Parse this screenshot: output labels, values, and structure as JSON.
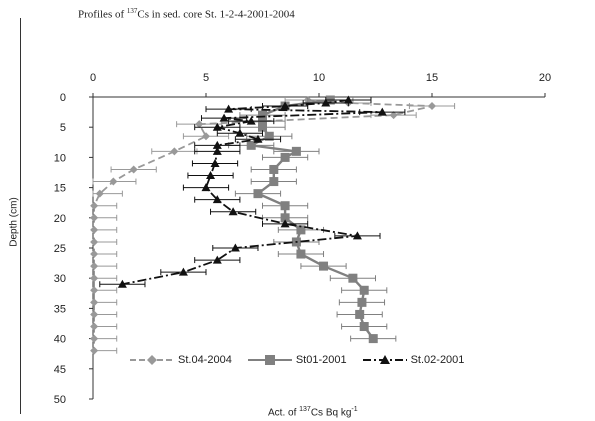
{
  "chart_data": {
    "type": "line",
    "title_text": "Profiles of ",
    "title_sup": "137",
    "title_rest": "Cs  in sed. core St. 1-2-4-2001-2004",
    "xlabel_text": "Act.  of ",
    "xlabel_sup": "137",
    "xlabel_rest": "Cs Bq kg",
    "xlabel_sup2": "-1",
    "ylabel": "Depth (cm)",
    "x_ticks": [
      "0",
      "5",
      "10",
      "15",
      "20"
    ],
    "y_ticks": [
      "0",
      "5",
      "10",
      "15",
      "20",
      "25",
      "30",
      "35",
      "40",
      "45",
      "50"
    ],
    "xlim": [
      0,
      20
    ],
    "ylim": [
      0,
      50
    ],
    "x_axis_position": "top",
    "y_axis_inverted": true,
    "grid": false,
    "legend_position": "bottom",
    "series": [
      {
        "name": "St.04-2004",
        "color": "#999999",
        "marker": "diamond",
        "line_style": "dashed",
        "points": [
          {
            "depth": 0.5,
            "value": 9.5,
            "err": 1.0
          },
          {
            "depth": 1,
            "value": 11.3,
            "err": 1.0
          },
          {
            "depth": 1.5,
            "value": 15.0,
            "err": 1.0
          },
          {
            "depth": 3,
            "value": 13.3,
            "err": 1.0
          },
          {
            "depth": 4.5,
            "value": 4.7,
            "err": 1.0
          },
          {
            "depth": 6.5,
            "value": 5.0,
            "err": 1.0
          },
          {
            "depth": 9,
            "value": 3.6,
            "err": 1.0
          },
          {
            "depth": 12,
            "value": 1.8,
            "err": 1.0
          },
          {
            "depth": 14,
            "value": 0.9,
            "err": 1.0
          },
          {
            "depth": 16,
            "value": 0.3,
            "err": 1.0
          },
          {
            "depth": 18,
            "value": 0.05,
            "err": 1.0
          },
          {
            "depth": 20,
            "value": 0.05,
            "err": 1.0
          },
          {
            "depth": 22,
            "value": 0.05,
            "err": 1.0
          },
          {
            "depth": 24,
            "value": 0.05,
            "err": 1.0
          },
          {
            "depth": 26,
            "value": 0.05,
            "err": 1.0
          },
          {
            "depth": 28,
            "value": 0.05,
            "err": 1.0
          },
          {
            "depth": 30,
            "value": 0.05,
            "err": 1.0
          },
          {
            "depth": 32,
            "value": 0.05,
            "err": 1.0
          },
          {
            "depth": 34,
            "value": 0.05,
            "err": 1.0
          },
          {
            "depth": 36,
            "value": 0.05,
            "err": 1.0
          },
          {
            "depth": 38,
            "value": 0.05,
            "err": 1.0
          },
          {
            "depth": 40,
            "value": 0.05,
            "err": 1.0
          },
          {
            "depth": 42,
            "value": 0.05,
            "err": 1.0
          }
        ]
      },
      {
        "name": "St01-2001",
        "color": "#808080",
        "marker": "square",
        "line_style": "solid",
        "points": [
          {
            "depth": 0.5,
            "value": 10.5,
            "err": 1.0
          },
          {
            "depth": 1.5,
            "value": 8.5,
            "err": 1.0
          },
          {
            "depth": 3,
            "value": 7.5,
            "err": 1.0
          },
          {
            "depth": 4,
            "value": 7.5,
            "err": 1.0
          },
          {
            "depth": 5,
            "value": 7.5,
            "err": 1.0
          },
          {
            "depth": 6.5,
            "value": 7.8,
            "err": 1.0
          },
          {
            "depth": 8,
            "value": 7.0,
            "err": 1.0
          },
          {
            "depth": 9,
            "value": 9.0,
            "err": 1.0
          },
          {
            "depth": 10,
            "value": 8.5,
            "err": 1.0
          },
          {
            "depth": 12,
            "value": 8.0,
            "err": 1.0
          },
          {
            "depth": 14,
            "value": 8.0,
            "err": 1.0
          },
          {
            "depth": 16,
            "value": 7.3,
            "err": 1.0
          },
          {
            "depth": 18,
            "value": 8.5,
            "err": 1.0
          },
          {
            "depth": 20,
            "value": 8.5,
            "err": 1.0
          },
          {
            "depth": 22,
            "value": 9.2,
            "err": 1.0
          },
          {
            "depth": 24,
            "value": 9.0,
            "err": 1.0
          },
          {
            "depth": 26,
            "value": 9.2,
            "err": 1.0
          },
          {
            "depth": 28,
            "value": 10.2,
            "err": 1.0
          },
          {
            "depth": 30,
            "value": 11.5,
            "err": 1.0
          },
          {
            "depth": 32,
            "value": 12.0,
            "err": 1.0
          },
          {
            "depth": 34,
            "value": 11.9,
            "err": 1.0
          },
          {
            "depth": 36,
            "value": 11.8,
            "err": 1.0
          },
          {
            "depth": 38,
            "value": 12.0,
            "err": 1.0
          },
          {
            "depth": 40,
            "value": 12.4,
            "err": 1.0
          }
        ]
      },
      {
        "name": "St.02-2001",
        "color": "#111111",
        "marker": "triangle",
        "line_style": "dash-dot",
        "points": [
          {
            "depth": 0.5,
            "value": 11.3,
            "err": 1.0
          },
          {
            "depth": 1,
            "value": 10.3,
            "err": 1.0
          },
          {
            "depth": 1.5,
            "value": 8.5,
            "err": 1.0
          },
          {
            "depth": 2,
            "value": 6.0,
            "err": 1.0
          },
          {
            "depth": 2.5,
            "value": 12.8,
            "err": 1.0
          },
          {
            "depth": 3.5,
            "value": 5.8,
            "err": 1.0
          },
          {
            "depth": 4,
            "value": 7.0,
            "err": 1.0
          },
          {
            "depth": 5,
            "value": 5.5,
            "err": 1.0
          },
          {
            "depth": 6,
            "value": 6.5,
            "err": 1.0
          },
          {
            "depth": 7,
            "value": 7.3,
            "err": 1.0
          },
          {
            "depth": 8,
            "value": 5.5,
            "err": 1.0
          },
          {
            "depth": 9,
            "value": 5.5,
            "err": 1.0
          },
          {
            "depth": 11,
            "value": 5.4,
            "err": 1.0
          },
          {
            "depth": 13,
            "value": 5.2,
            "err": 1.0
          },
          {
            "depth": 15,
            "value": 5.0,
            "err": 1.0
          },
          {
            "depth": 17,
            "value": 5.5,
            "err": 1.0
          },
          {
            "depth": 19,
            "value": 6.2,
            "err": 1.0
          },
          {
            "depth": 21,
            "value": 8.5,
            "err": 1.0
          },
          {
            "depth": 23,
            "value": 11.7,
            "err": 1.0
          },
          {
            "depth": 25,
            "value": 6.3,
            "err": 1.0
          },
          {
            "depth": 27,
            "value": 5.5,
            "err": 1.0
          },
          {
            "depth": 29,
            "value": 4.0,
            "err": 1.0
          },
          {
            "depth": 31,
            "value": 1.3,
            "err": 1.0
          }
        ]
      }
    ]
  }
}
